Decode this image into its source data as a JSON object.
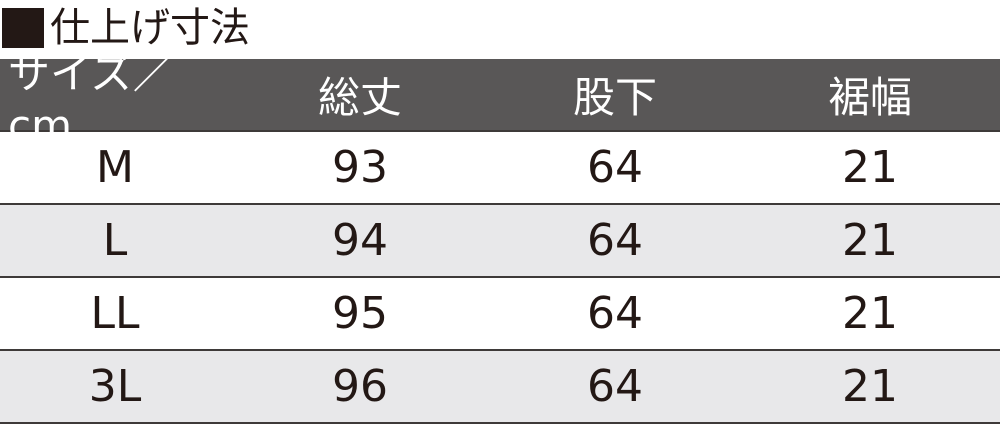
{
  "title": "仕上げ寸法",
  "colors": {
    "header_bg": "#595757",
    "alt_row_bg": "#e8e8ea",
    "text": "#231815"
  },
  "table": {
    "headers": [
      "サイズ／ cm",
      "総丈",
      "股下",
      "裾幅"
    ],
    "rows": [
      [
        "M",
        "93",
        "64",
        "21"
      ],
      [
        "L",
        "94",
        "64",
        "21"
      ],
      [
        "LL",
        "95",
        "64",
        "21"
      ],
      [
        "3L",
        "96",
        "64",
        "21"
      ]
    ]
  }
}
